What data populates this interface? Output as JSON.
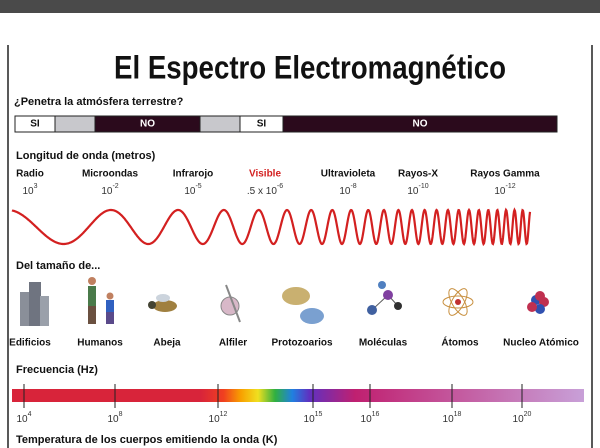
{
  "header": {
    "title": "El Espectro Electromagnético"
  },
  "atmosphere": {
    "question": "¿Penetra la atmósfera terrestre?",
    "segments": [
      "SI",
      "NO",
      "SI",
      "NO"
    ]
  },
  "wavelength": {
    "title": "Longitud de onda (metros)",
    "bands": [
      {
        "name": "Radio",
        "base": "10",
        "exp": "3"
      },
      {
        "name": "Microondas",
        "base": "10",
        "exp": "-2"
      },
      {
        "name": "Infrarojo",
        "base": "10",
        "exp": "-5"
      },
      {
        "name": "Visible",
        "base": ".5 x 10",
        "exp": "-6"
      },
      {
        "name": "Ultravioleta",
        "base": "10",
        "exp": "-8"
      },
      {
        "name": "Rayos-X",
        "base": "10",
        "exp": "-10"
      },
      {
        "name": "Rayos Gamma",
        "base": "10",
        "exp": "-12"
      }
    ]
  },
  "size": {
    "title": "Del tamaño de...",
    "items": [
      "Edificios",
      "Humanos",
      "Abeja",
      "Alfiler",
      "Protozoarios",
      "Moléculas",
      "Átomos",
      "Nucleo Atómico"
    ]
  },
  "frequency": {
    "title": "Frecuencia (Hz)",
    "ticks": [
      {
        "base": "10",
        "exp": "4"
      },
      {
        "base": "10",
        "exp": "8"
      },
      {
        "base": "10",
        "exp": "12"
      },
      {
        "base": "10",
        "exp": "15"
      },
      {
        "base": "10",
        "exp": "16"
      },
      {
        "base": "10",
        "exp": "18"
      },
      {
        "base": "10",
        "exp": "20"
      }
    ]
  },
  "temperature": {
    "title": "Temperatura de los cuerpos emitiendo la onda (K)"
  }
}
